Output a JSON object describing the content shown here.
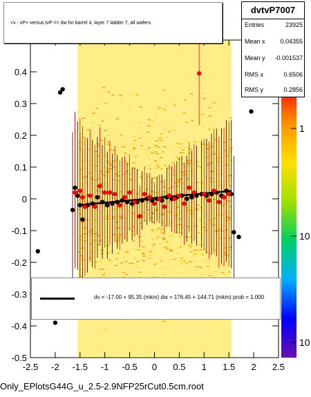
{
  "title": "<v - vP>        versus  tvP =>  dw for barrel 4, layer 7 ladder 7, all wafers",
  "stats": {
    "name": "dvtvP7007",
    "rows": [
      {
        "label": "Entries",
        "value": "23925"
      },
      {
        "label": "Mean x",
        "value": "0.04355"
      },
      {
        "label": "Mean y",
        "value": "-0.001537"
      },
      {
        "label": "RMS x",
        "value": "0.6506"
      },
      {
        "label": "RMS y",
        "value": "0.2856"
      }
    ]
  },
  "fit_text": "dv =  -17.00 + 95.35 (mkm) dw =  176.45 + 144.71 (mkm) prob = 1.000",
  "footer": "Only_EPlotsG44G_u_2.5-2.9NFP25rCut0.5cm.root",
  "colors": {
    "profile_black": "#000000",
    "profile_red": "#ff0000",
    "fit_line": "#000000"
  },
  "chart_data": {
    "type": "scatter",
    "xlim": [
      -2.5,
      2.5
    ],
    "ylim": [
      -0.5,
      0.5
    ],
    "x_ticks": [
      "-2.5",
      "-2",
      "-1.5",
      "-1",
      "-0.5",
      "0",
      "0.5",
      "1",
      "1.5",
      "2",
      "2.5"
    ],
    "y_ticks": [
      "-0.5",
      "-0.4",
      "-0.3",
      "-0.2",
      "-0.1",
      "0",
      "0.1",
      "0.2",
      "0.3",
      "0.4"
    ],
    "z_ticks": [
      "1",
      "10",
      "10"
    ],
    "density_x_range": [
      -1.55,
      1.55
    ],
    "series": [
      {
        "color": "black",
        "points": [
          [
            -2.35,
            -0.165
          ],
          [
            -2.0,
            -0.39
          ],
          [
            -1.9,
            0.335
          ],
          [
            -1.85,
            0.345
          ],
          [
            -1.65,
            -0.035
          ],
          [
            -1.6,
            0.035
          ],
          [
            -1.55,
            0.01
          ],
          [
            -1.5,
            -0.02
          ],
          [
            -1.45,
            -0.065
          ],
          [
            -1.35,
            -0.02
          ],
          [
            -1.25,
            -0.015
          ],
          [
            -1.15,
            0.005
          ],
          [
            -1.05,
            -0.01
          ],
          [
            -0.95,
            -0.02
          ],
          [
            -0.85,
            -0.015
          ],
          [
            -0.75,
            -0.01
          ],
          [
            -0.65,
            -0.005
          ],
          [
            -0.55,
            -0.01
          ],
          [
            -0.45,
            -0.015
          ],
          [
            -0.35,
            -0.01
          ],
          [
            -0.25,
            -0.005
          ],
          [
            -0.15,
            0.0
          ],
          [
            -0.05,
            -0.005
          ],
          [
            0.05,
            0.0
          ],
          [
            0.15,
            -0.005
          ],
          [
            0.25,
            0.005
          ],
          [
            0.35,
            0.0
          ],
          [
            0.45,
            0.005
          ],
          [
            0.55,
            0.01
          ],
          [
            0.65,
            0.0
          ],
          [
            0.75,
            0.005
          ],
          [
            0.85,
            0.01
          ],
          [
            0.95,
            0.015
          ],
          [
            1.05,
            0.01
          ],
          [
            1.15,
            0.015
          ],
          [
            1.25,
            0.02
          ],
          [
            1.35,
            0.01
          ],
          [
            1.45,
            0.025
          ],
          [
            1.55,
            0.015
          ],
          [
            1.6,
            -0.105
          ],
          [
            1.7,
            -0.12
          ],
          [
            1.95,
            0.275
          ]
        ]
      },
      {
        "color": "red",
        "points": [
          [
            -1.6,
            0.02
          ],
          [
            -1.5,
            0.025
          ],
          [
            -1.45,
            0.005
          ],
          [
            -1.4,
            -0.025
          ],
          [
            -1.3,
            0.01
          ],
          [
            -1.2,
            -0.025
          ],
          [
            -1.1,
            0.04
          ],
          [
            -1.0,
            0.02
          ],
          [
            -0.9,
            0.02
          ],
          [
            -0.8,
            0.015
          ],
          [
            -0.7,
            -0.02
          ],
          [
            -0.6,
            0.005
          ],
          [
            -0.5,
            0.02
          ],
          [
            -0.4,
            -0.01
          ],
          [
            -0.3,
            -0.055
          ],
          [
            -0.2,
            0.015
          ],
          [
            -0.1,
            0.005
          ],
          [
            0.0,
            -0.015
          ],
          [
            0.1,
            0.0
          ],
          [
            0.2,
            -0.025
          ],
          [
            0.3,
            0.01
          ],
          [
            0.4,
            0.0
          ],
          [
            0.5,
            0.01
          ],
          [
            0.6,
            -0.015
          ],
          [
            0.7,
            0.035
          ],
          [
            0.8,
            0.02
          ],
          [
            0.9,
            0.395
          ],
          [
            1.0,
            0.015
          ],
          [
            1.1,
            -0.005
          ],
          [
            1.2,
            0.025
          ],
          [
            1.3,
            -0.01
          ],
          [
            1.4,
            0.005
          ],
          [
            1.5,
            0.015
          ]
        ]
      }
    ]
  }
}
